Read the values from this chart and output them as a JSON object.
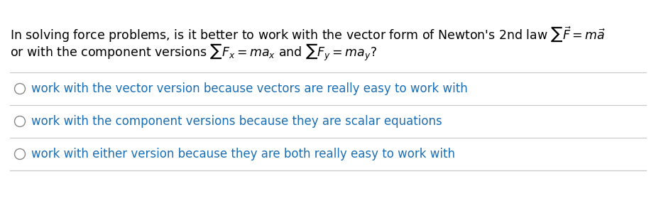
{
  "background_color": "#ffffff",
  "text_color_black": "#000000",
  "text_color_blue": "#1a6eb5",
  "options": [
    "work with the vector version because vectors are really easy to work with",
    "work with the component versions because they are scalar equations",
    "work with either version because they are both really easy to work with"
  ],
  "divider_color": "#c8c8c8",
  "circle_color": "#888888",
  "figsize": [
    9.24,
    3.0
  ],
  "dpi": 100
}
